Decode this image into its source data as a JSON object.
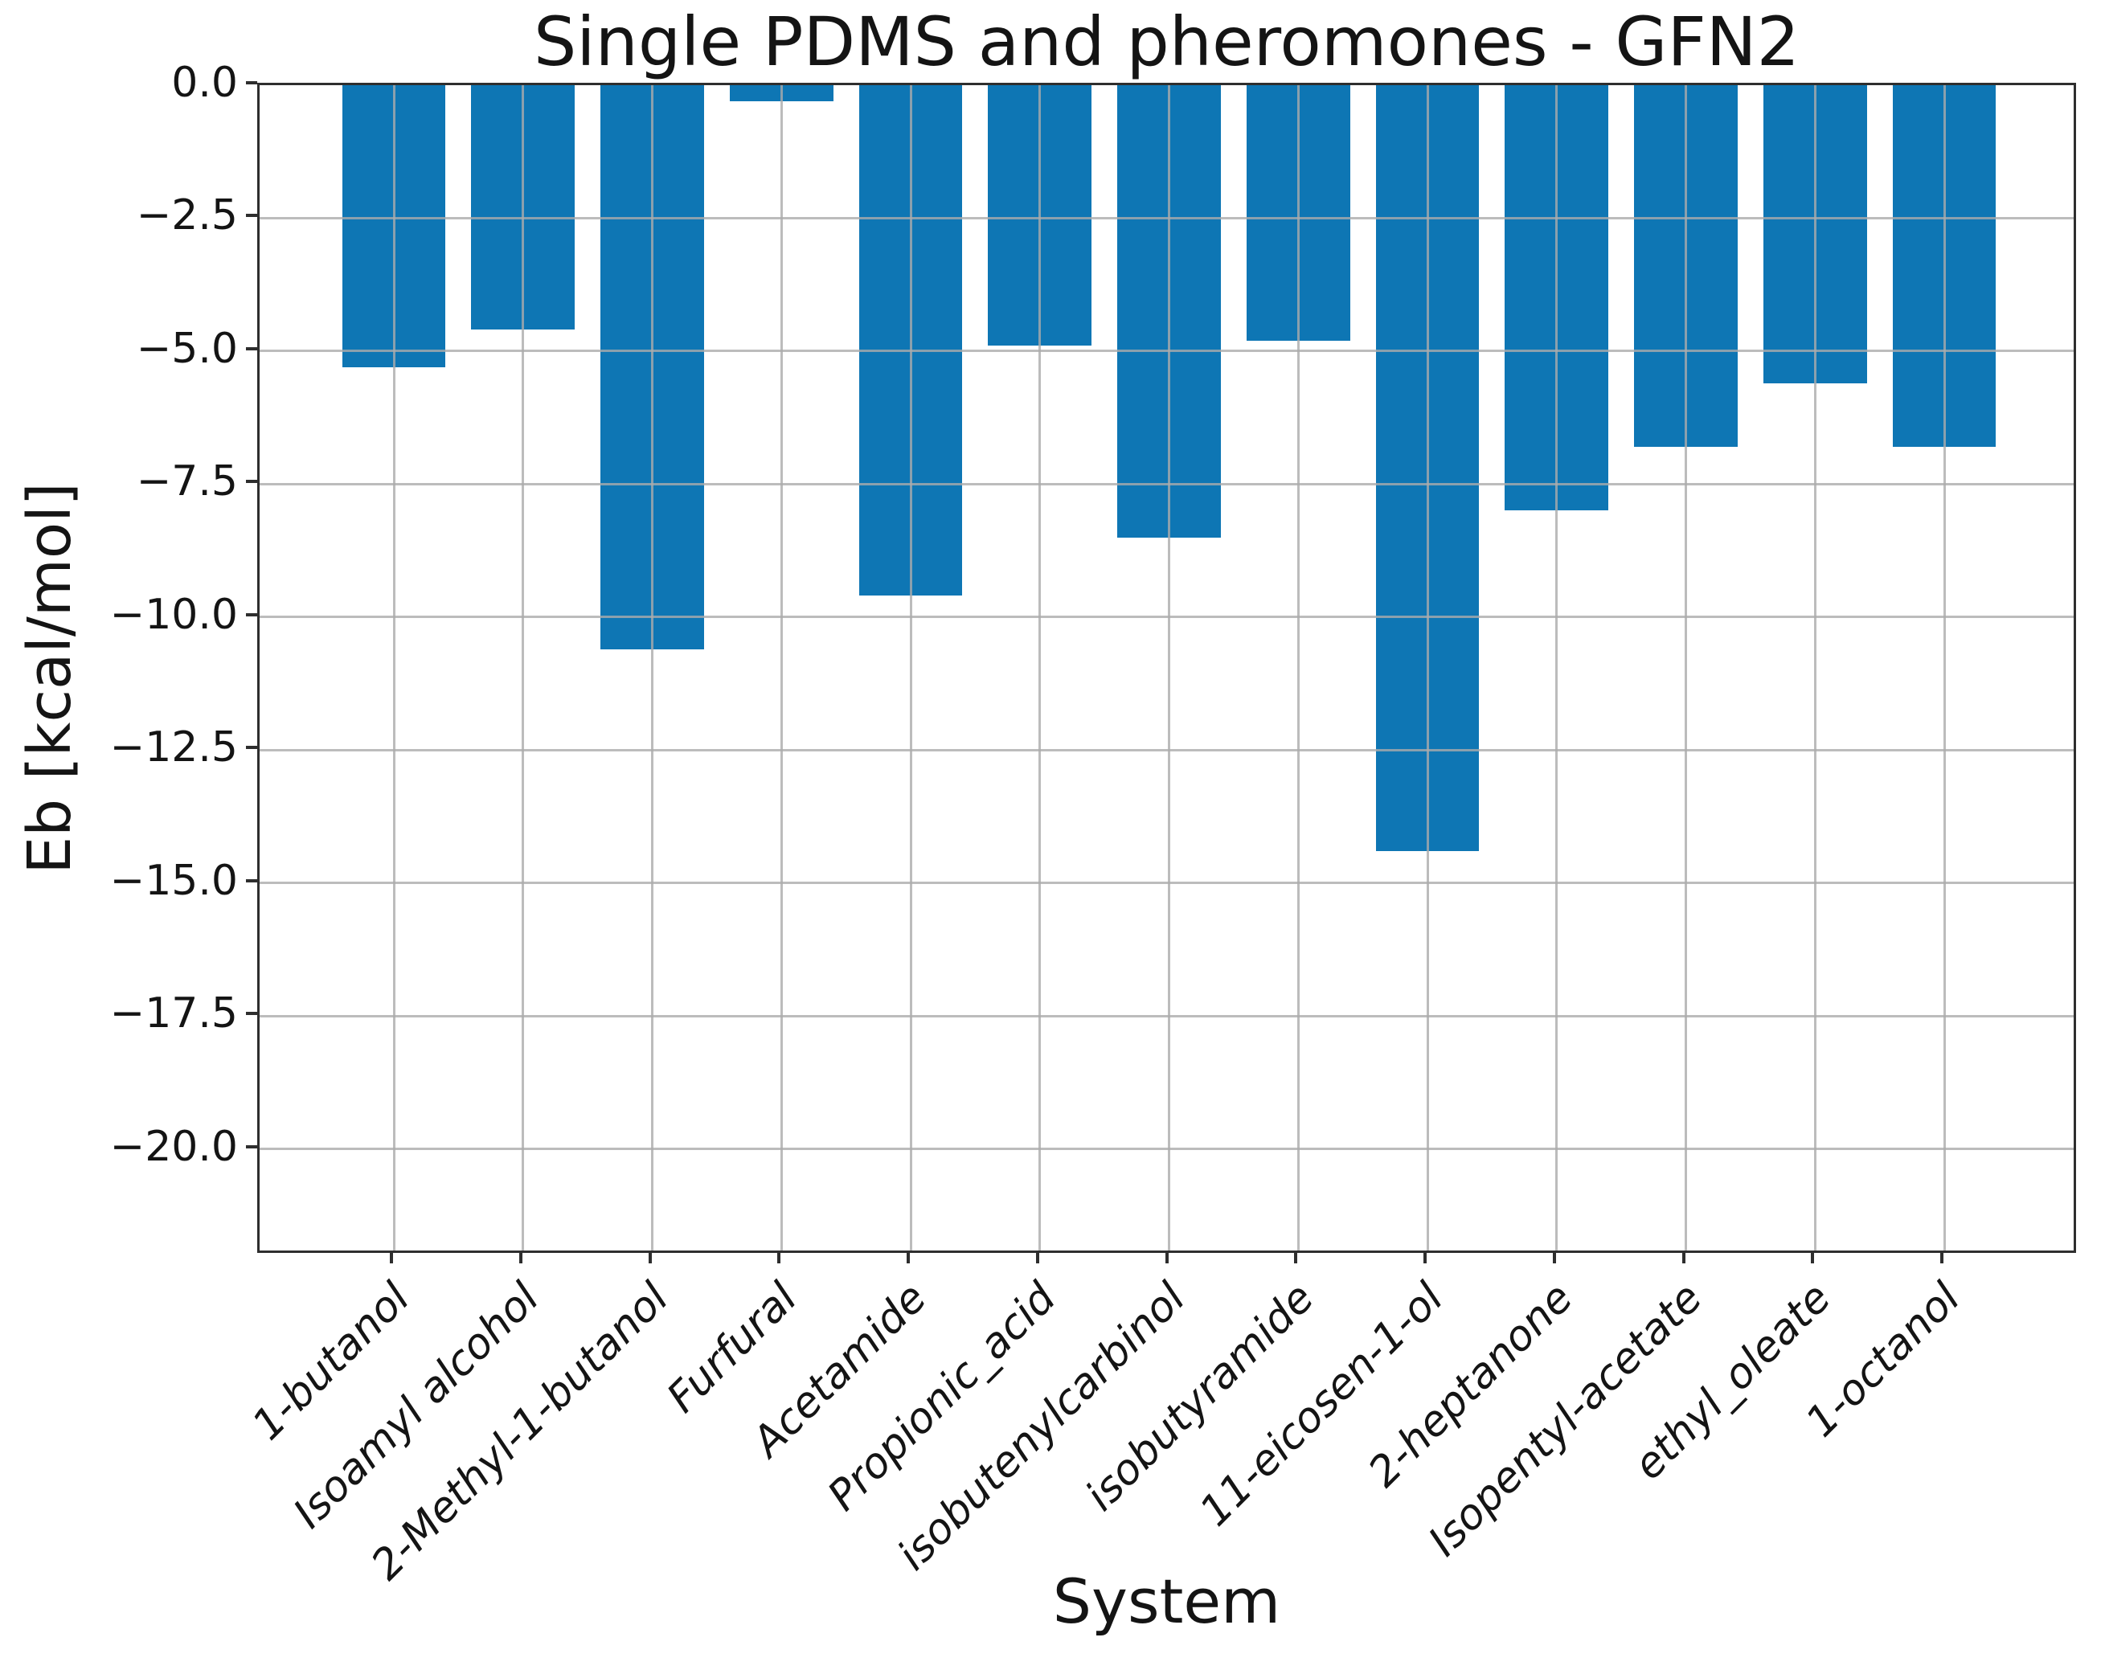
{
  "chart_data": {
    "type": "bar",
    "title": "Single PDMS and pheromones - GFN2",
    "xlabel": "System",
    "ylabel": "Eb [kcal/mol]",
    "categories": [
      "1-butanol",
      "Isoamyl alcohol",
      "2-Methyl-1-butanol",
      "Furfural",
      "Acetamide",
      "Propionic_acid",
      "isobutenylcarbinol",
      "isobutyramide",
      "11-eicosen-1-ol",
      "2-heptanone",
      "Isopentyl-acetate",
      "ethyl_oleate",
      "1-octanol"
    ],
    "values": [
      -5.3,
      -4.6,
      -10.6,
      -0.3,
      -9.6,
      -4.9,
      -8.5,
      -4.8,
      -14.4,
      -8.0,
      -6.8,
      -5.6,
      -6.8
    ],
    "ylim": [
      -22,
      0
    ],
    "yticks": [
      0.0,
      -2.5,
      -5.0,
      -7.5,
      -10.0,
      -12.5,
      -15.0,
      -17.5,
      -20.0
    ],
    "ytick_labels": [
      "0.0",
      "−2.5",
      "−5.0",
      "−7.5",
      "−10.0",
      "−12.5",
      "−15.0",
      "−17.5",
      "−20.0"
    ],
    "grid": true,
    "grid_on_top_of_bars": true,
    "legend": false,
    "bar_width_fraction": 0.8,
    "bar_color": "#0e76b4",
    "grid_color": "#ababab",
    "spine_color": "#2e2e2e",
    "text_color": "#141414"
  }
}
